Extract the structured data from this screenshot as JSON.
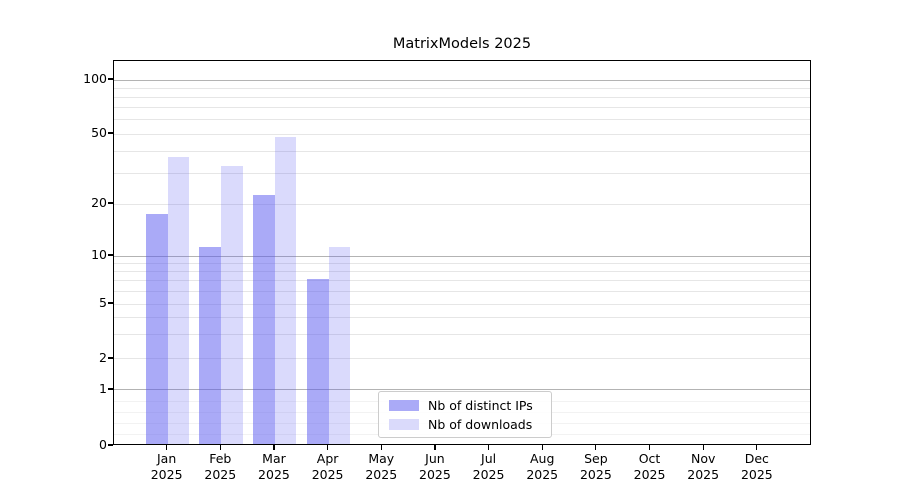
{
  "chart_data": {
    "type": "bar",
    "title": "MatrixModels 2025",
    "categories": [
      "Jan",
      "Feb",
      "Mar",
      "Apr",
      "May",
      "Jun",
      "Jul",
      "Aug",
      "Sep",
      "Oct",
      "Nov",
      "Dec"
    ],
    "x_tick_second_line": "2025",
    "series": [
      {
        "name": "Nb of distinct IPs",
        "color_rgba": "rgba(85,85,240,0.5)",
        "color_solid": "#aaaaf7",
        "values": [
          17,
          11,
          22,
          7,
          0,
          0,
          0,
          0,
          0,
          0,
          0,
          0
        ]
      },
      {
        "name": "Nb of downloads",
        "color_rgba": "rgba(85,85,240,0.22)",
        "color_solid": "#dadafb",
        "values": [
          36,
          32,
          47,
          11,
          0,
          0,
          0,
          0,
          0,
          0,
          0,
          0
        ]
      }
    ],
    "y_axis": {
      "scale": "symlog",
      "tick_labels": [
        "0",
        "1",
        "2",
        "5",
        "10",
        "20",
        "50",
        "100"
      ],
      "tick_values": [
        0,
        1,
        2,
        5,
        10,
        20,
        50,
        100
      ],
      "ylim": [
        0,
        130
      ],
      "anchors": [
        [
          0,
          0
        ],
        [
          1,
          0.1453
        ],
        [
          2,
          0.2257
        ],
        [
          5,
          0.3683
        ],
        [
          10,
          0.4928
        ],
        [
          20,
          0.6277
        ],
        [
          50,
          0.8093
        ],
        [
          100,
          0.9494
        ]
      ],
      "major_gridline_values": [
        1,
        10,
        100
      ],
      "minor_gridline_values": [
        0.2,
        0.4,
        0.6,
        0.8,
        2,
        3,
        4,
        5,
        6,
        7,
        8,
        9,
        20,
        30,
        40,
        50,
        60,
        70,
        80,
        90
      ]
    },
    "legend": {
      "position": "inside-bottom-center",
      "entries": [
        "Nb of distinct IPs",
        "Nb of downloads"
      ]
    },
    "colors": {
      "grid_major": "#b3b3b3",
      "grid_minor": "#e6e6e6",
      "grid_faint": "#f2f2f2",
      "spine": "#000000",
      "background": "#ffffff"
    },
    "grid": "on",
    "legend_position": "lower center"
  }
}
